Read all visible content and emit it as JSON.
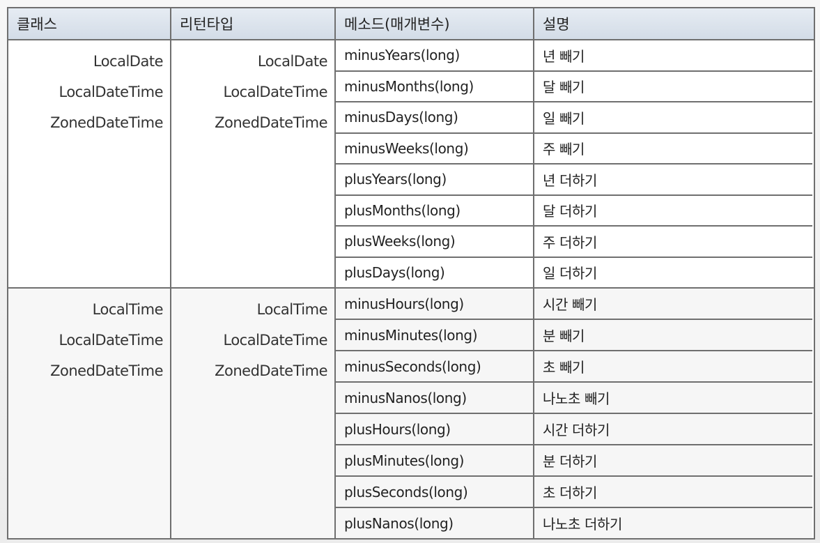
{
  "header": {
    "col_class": "클래스",
    "col_return": "리턴타입",
    "col_method": "메소드(매개변수)",
    "col_desc": "설명"
  },
  "groups": [
    {
      "classes": [
        "LocalDate",
        "LocalDateTime",
        "ZonedDateTime"
      ],
      "returns": [
        "LocalDate",
        "LocalDateTime",
        "ZonedDateTime"
      ],
      "rows": [
        {
          "method": "minusYears(long)",
          "desc": "년 빼기"
        },
        {
          "method": "minusMonths(long)",
          "desc": "달 빼기"
        },
        {
          "method": "minusDays(long)",
          "desc": "일 빼기"
        },
        {
          "method": "minusWeeks(long)",
          "desc": "주 빼기"
        },
        {
          "method": "plusYears(long)",
          "desc": "년 더하기"
        },
        {
          "method": "plusMonths(long)",
          "desc": "달 더하기"
        },
        {
          "method": "plusWeeks(long)",
          "desc": "주 더하기"
        },
        {
          "method": "plusDays(long)",
          "desc": "일 더하기"
        }
      ]
    },
    {
      "classes": [
        "LocalTime",
        "LocalDateTime",
        "ZonedDateTime"
      ],
      "returns": [
        "LocalTime",
        "LocalDateTime",
        "ZonedDateTime"
      ],
      "rows": [
        {
          "method": "minusHours(long)",
          "desc": "시간 빼기"
        },
        {
          "method": "minusMinutes(long)",
          "desc": "분 빼기"
        },
        {
          "method": "minusSeconds(long)",
          "desc": "초 빼기"
        },
        {
          "method": "minusNanos(long)",
          "desc": "나노초 빼기"
        },
        {
          "method": "plusHours(long)",
          "desc": "시간 더하기"
        },
        {
          "method": "plusMinutes(long)",
          "desc": "분 더하기"
        },
        {
          "method": "plusSeconds(long)",
          "desc": "초 더하기"
        },
        {
          "method": "plusNanos(long)",
          "desc": "나노초 더하기"
        }
      ]
    }
  ]
}
